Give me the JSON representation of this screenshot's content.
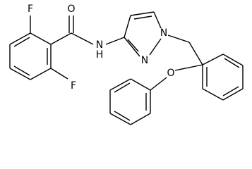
{
  "atoms": [
    {
      "label": "F"
    },
    {
      "label": "O"
    },
    {
      "label": "N"
    },
    {
      "label": "H"
    },
    {
      "label": "N"
    },
    {
      "label": "N"
    },
    {
      "label": "O"
    },
    {
      "label": "F"
    }
  ]
}
